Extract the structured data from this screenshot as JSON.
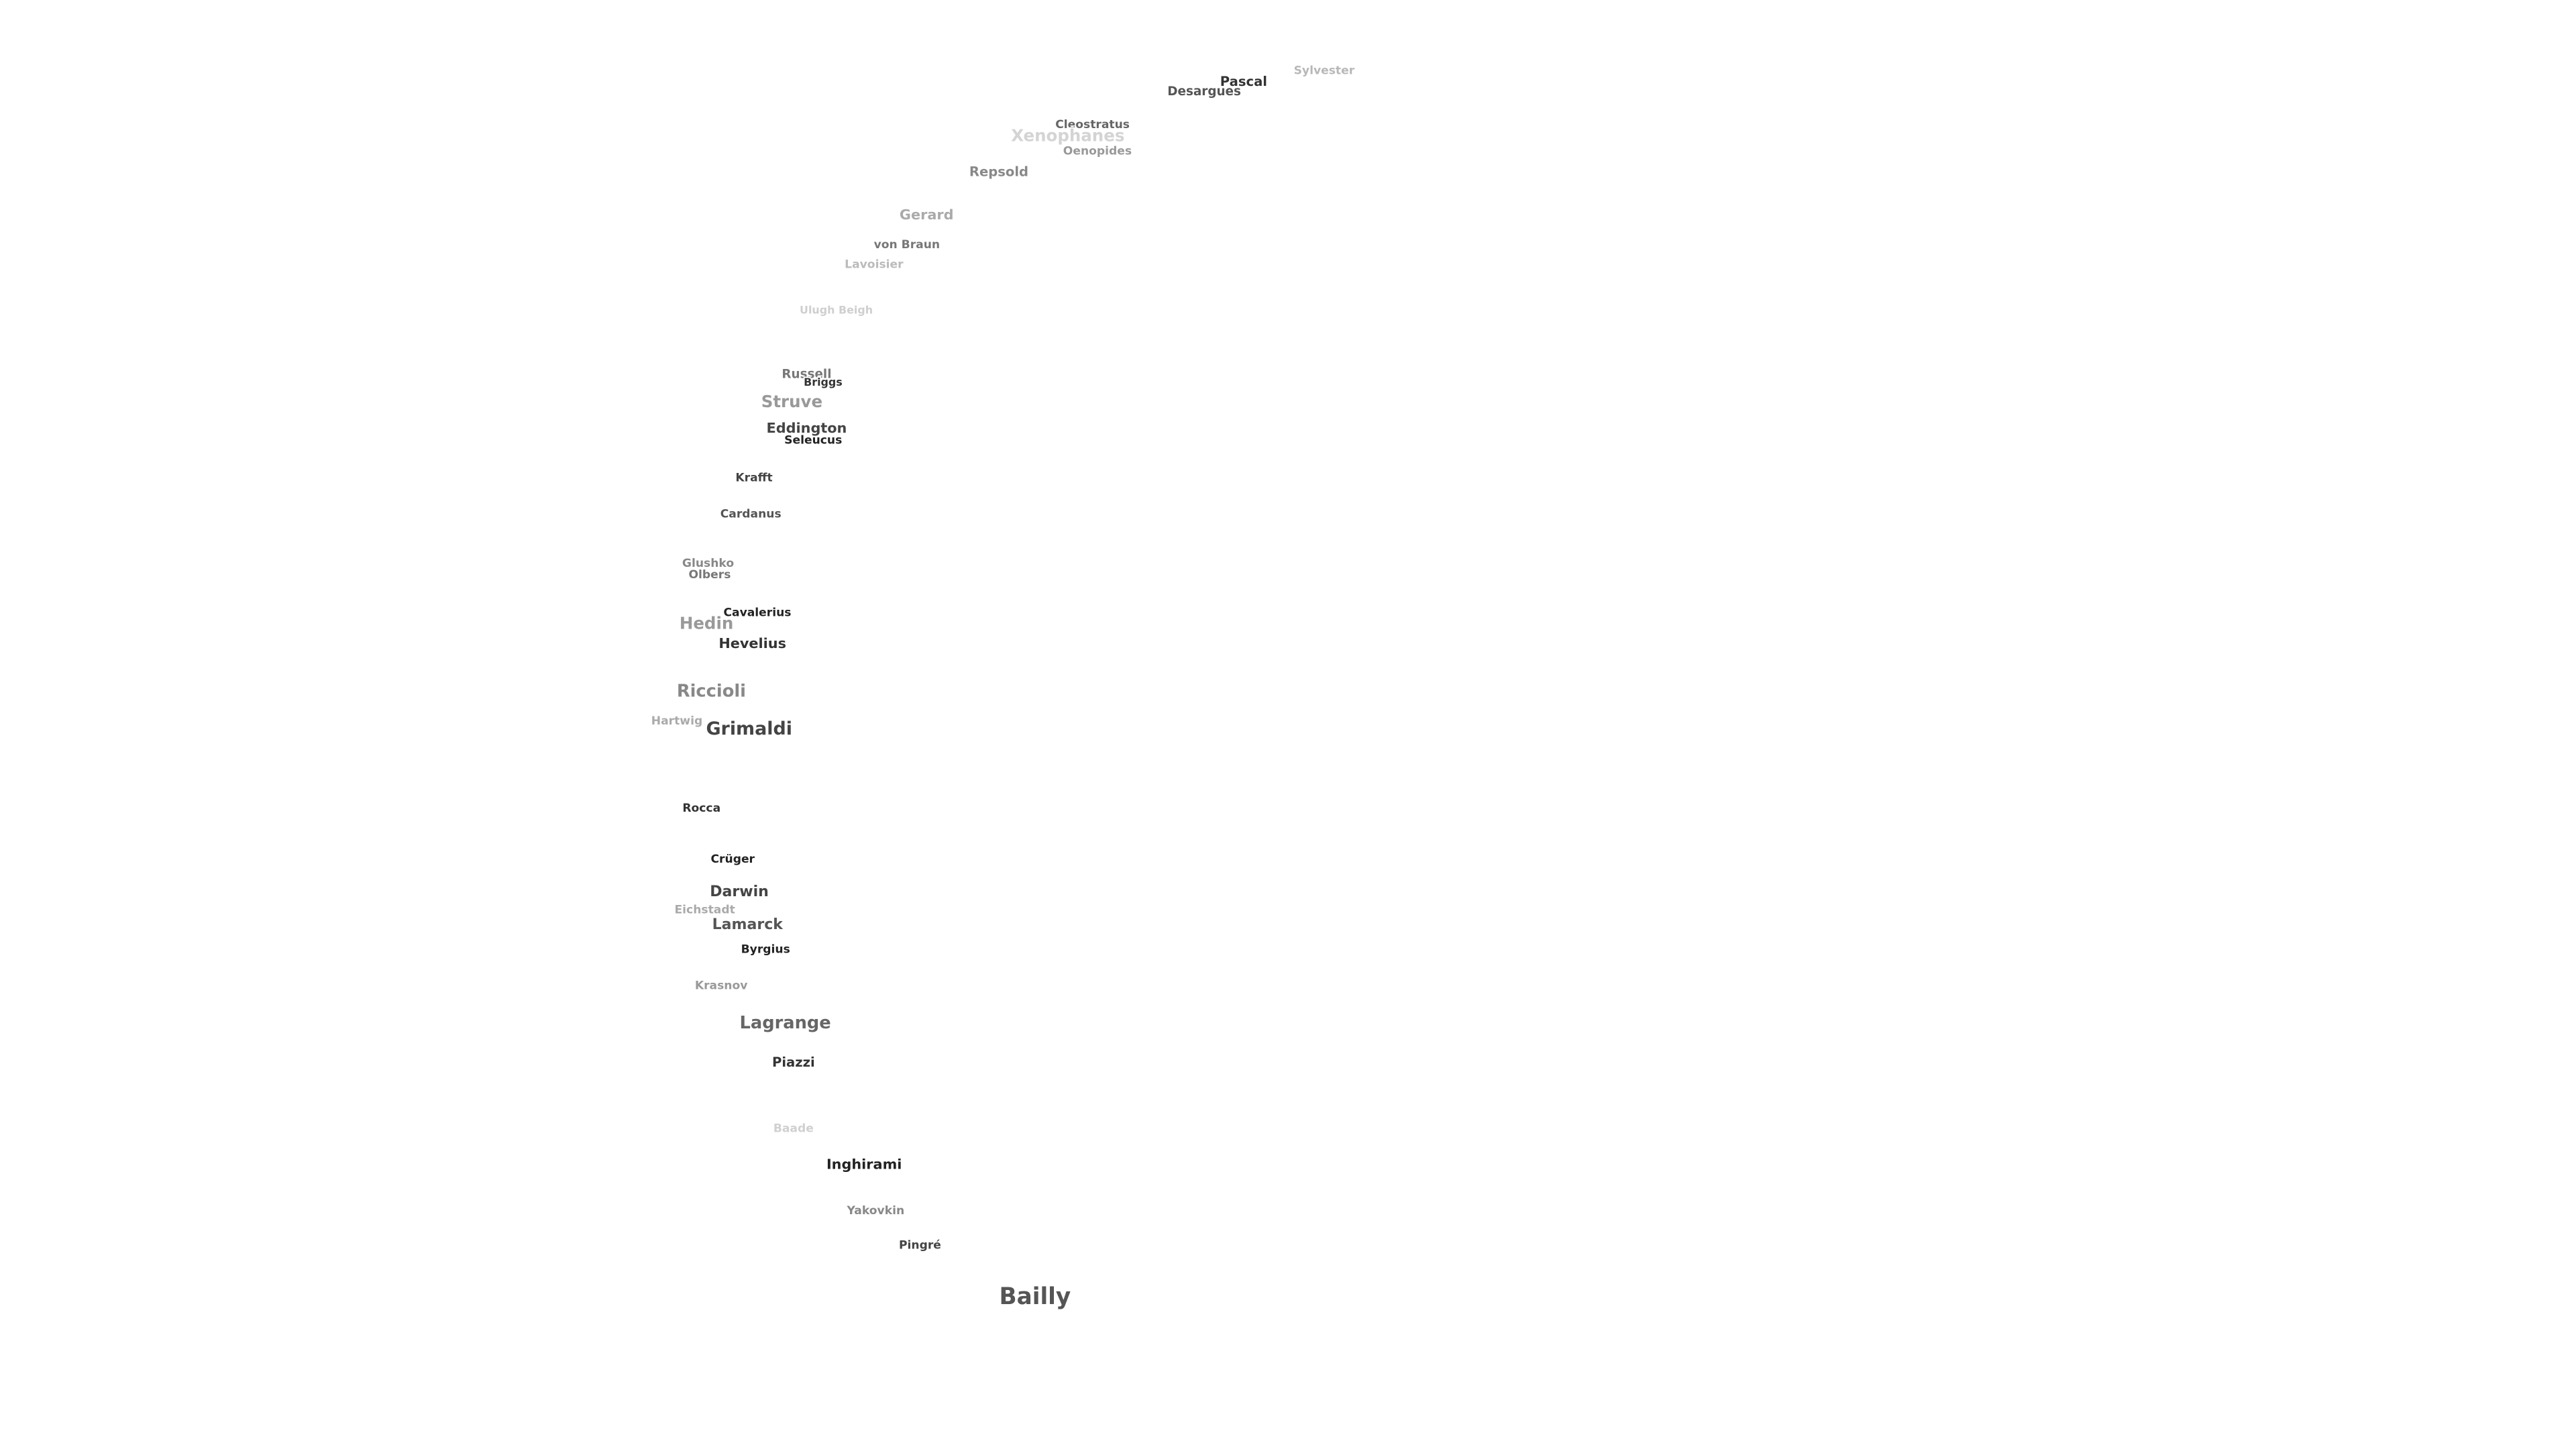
{
  "labels": [
    "Sylvester",
    "Pascal",
    "Desargues",
    "Cleostratus",
    "Xenophanes",
    "Oenopides",
    "Repsold",
    "Gerard",
    "von Braun",
    "Lavoisier",
    "Ulugh Beigh",
    "Russell",
    "Briggs",
    "Struve",
    "Eddington",
    "Seleucus",
    "Krafft",
    "Cardanus",
    "Glushko",
    "Olbers",
    "Cavalerius",
    "Hedin",
    "Hevelius",
    "Riccioli",
    "Hartwig",
    "Grimaldi",
    "Rocca",
    "Crüger",
    "Darwin",
    "Eichstadt",
    "Lamarck",
    "Byrgius",
    "Krasnov",
    "Lagrange",
    "Piazzi",
    "Baade",
    "Inghirami",
    "Yakovkin",
    "Pingré",
    "Bailly"
  ]
}
